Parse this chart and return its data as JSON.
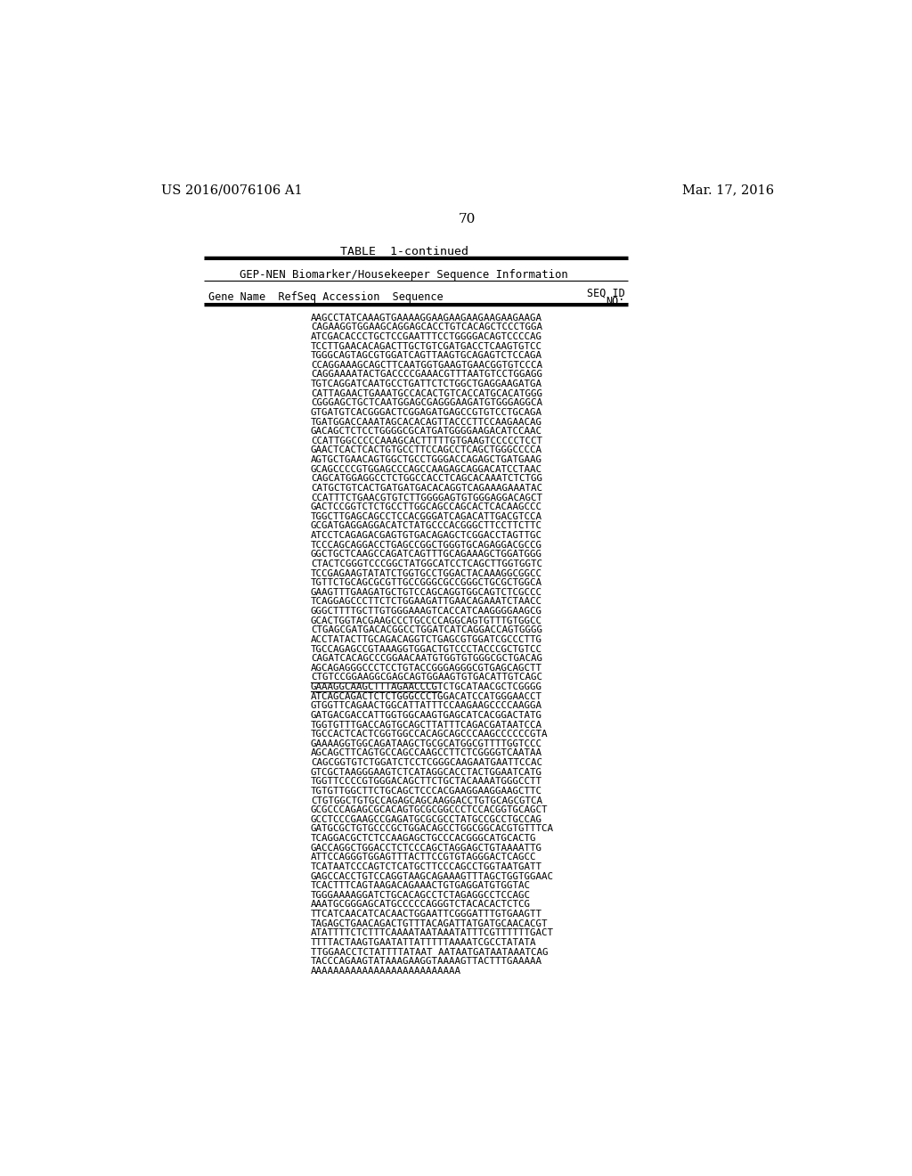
{
  "left_header": "US 2016/0076106 A1",
  "right_header": "Mar. 17, 2016",
  "page_number": "70",
  "table_title": "TABLE  1-continued",
  "table_subtitle": "GEP-NEN Biomarker/Housekeeper Sequence Information",
  "background_color": "#ffffff",
  "sequence_lines": [
    "AAGCCTATCAAAGTGAAAAGGAAGAAGAAGAAGAAGAAGA",
    "CAGAAGGTGGAAGCAGGAGCACCTGTCACAGCTCCCTGGA",
    "ATCGACACCCTGCTCCGAATTTCCTGGGGACAGTCCCCAG",
    "TCCTTGAACACAGACTTGCTGTCGATGACCTCAAGTGTCC",
    "TGGGCAGTAGCGTGGATCAGTTAAGTGCAGAGTCTCCAGA",
    "CCAGGAAAGCAGCTTCAATGGTGAAGTGAACGGTGTCCCA",
    "CAGGAAAATACTGACCCCGAAACGTTTAATGTCCTGGAGG",
    "TGTCAGGATCAATGCCTGATTCTCTGGCTGAGGAAGATGA",
    "CATTAGAACTGAAATGCCACACTGTCACCATGCACATGGG",
    "CGGGAGCTGCTCAATGGAGCGAGGGAAGATGTGGGAGGCA",
    "GTGATGTCACGGGACTCGGAGATGAGCCGTGTCCTGCAGA",
    "TGATGGACCAAATAGCACACAGTTACCCTTCCAAGAACAG",
    "GACAGCTCTCCTGGGGCGCATGATGGGGAAGACATCCAAC",
    "CCATTGGCCCCCAAAGCACTTTTTGTGAAGTCCCCCTCCT",
    "GAACTCACTCACTGTGCCTTCCAGCCTCAGCTGGGCCCCA",
    "AGTGCTGAACAGTGGCTGCCTGGGACCAGAGCTGATGAAG",
    "GCAGCCCCGTGGAGCCCAGCCAAGAGCAGGACATCCTAAC",
    "CAGCATGGAGGCCTCTGGCCACCTCAGCACAAATCTCTGG",
    "CATGCTGTCACTGATGATGACACAGGTCAGAAAGAAATAC",
    "CCATTTCTGAACGTGTCTTGGGGAGTGTGGGAGGACAGCT",
    "GACTCCGGTCTCTGCCTTGGCAGCCAGCACTCACAAGCCC",
    "TGGCTTGAGCAGCCTCCACGGGATCAGACATTGACGTCCA",
    "GCGATGAGGAGGACATCTATGCCCACGGGCTTCCTTCTTC",
    "ATCCTCAGAGACGAGTGTGACAGAGCTCGGACCTAGTTGC",
    "TCCCAGCAGGACCTGAGCCGGCTGGGTGCAGAGGACGCCG",
    "GGCTGCTCAAGCCAGATCAGTTTGCAGAAAGCTGGATGGG",
    "CTACTCGGGTCCCGGCTATGGCATCCTCAGCTTGGTGGTC",
    "TCCGAGAAGTATATCTGGTGCCTGGACTACAAAGGCGGCC",
    "TGTTCTGCAGCGCGTTGCCGGGCGCCGGGCTGCGCTGGCA",
    "GAAGTTTGAAGATGCTGTCCAGCAGGTGGCAGTCTCGCCC",
    "TCAGGAGCCCTTCTCTGGAAGATTGAACAGAAATCTAACC",
    "GGGCTTTTGCTTGTGGGAAAGTCACCATCAAGGGGAAGCG",
    "GCACTGGTACGAAGCCCTGCCCCAGGCAGTGTTTGTGGCC",
    "CTGAGCGATGACACGGCCTGGATCATCAGGACCAGTGGGG",
    "ACCTATACTTGCAGACAGGTCTGAGCGTGGATCGCCCTTG",
    "TGCCAGAGCCGTAAAGGTGGACTGTCCCTACCCGCTGTCC",
    "CAGATCACAGCCCGGAACAATGTGGTGTGGGCGCTGACAG",
    "AGCAGAGGGCCCTCCTGTACCGGGAGGGCGTGAGCAGCTT",
    "CTGTCCGGAAGGCGAGCAGTGGAAGTGTGACATTGTCAGC",
    "GAAAGGCAAGCTTTAGAACCCGTCTGCATAACGCTCGGGG",
    "ATCAGCAGACTCTCTGGGCCCTGGACATCCATGGGAACCT",
    "GTGGTTCAGAACTGGCATTATTTCCAAGAAGCCCCAAGGA",
    "GATGACGACCATTGGTGGCAAGTGAGCATCACGGACTATG",
    "TGGTGTTTGACCAGTGCAGCTTATTTCAGACGATAATCCA",
    "TGCCACTCACTCGGTGGCCACAGCAGCCCAAGCCCCCCGTA",
    "GAAAAGGTGGCAGATAAGCTGCGCATGGCGTTTTGGTCCC",
    "AGCAGCTTCAGTGCCAGCCAAGCCTTCTCGGGGTCAATAA",
    "CAGCGGTGTCTGGATCTCCTCGGGCAAGAATGAATTCCAC",
    "GTCGCTAAGGGAAGTCTCATAGGCACCTACTGGAATCATG",
    "TGGTTCCCCGTGGGACAGCTTCTGCTACAAAATGGGCCTT",
    "TGTGTTGGCTTCTGCAGCTCCCACGAAGGAAGGAAGCTTC",
    "CTGTGGCTGTGCCAGAGCAGCAAGGACCTGTGCAGCGTCA",
    "GCGCCCAGAGCGCACAGTGCGCGGCCCTCCACGGTGCAGCT",
    "GCCTCCCGAAGCCGAGATGCGCGCCTATGCCGCCTGCCAG",
    "GATGCGCTGTGCCCGCTGGACAGCCTGGCGGCACGTGTTTCA",
    "TCAGGACGCTCTCCAAGAGCTGCCCACGGGCATGCACTG",
    "GACCAGGCTGGACCTCTCCCAGCTAGGAGCTGTAAAATTG",
    "ATTCCAGGGTGGAGTTTACTTCCGTGTAGGGACTCAGCC",
    "TCATAATCCCAGTCTCATGCTTCCCAGCCTGGTAATGATT",
    "GAGCCACCTGTCCAGGTAAGCAGAAAGTTTAGCTGGTGGAAC",
    "TCACTTTCAGTAAGACAGAAACTGTGAGGATGTGGTAC",
    "TGGGAAAAGGATCTGCACAGCCTCTAGAGGCCTCCAGC",
    "AAATGCGGGAGCATGCCCCCAGGGTCTACACACTCTCG",
    "TTCATCAACATCACAACTGGAATTCGGGATTTGTGAAGTT",
    "TAGAGCTGAACAGACTGTTTACAGATTATGATGCAACACGT",
    "ATATTTTCTCTTTCAAAATAATAAATATTTCGTTTTTTGACT",
    "TTTTACTAAGTGAATATTATTTTTAAAATCGCCTATATA",
    "TTGGAACCTCTATTTTATAAT AATAATGATAATAAATCAG",
    "TACCCAGAAGTATAAAGAAGGTAAAAGTTACTTTGAAAAA",
    "AAAAAAAAAAAAAAAAAAAAAAAAAA"
  ],
  "underline_indices": [
    38,
    39
  ]
}
